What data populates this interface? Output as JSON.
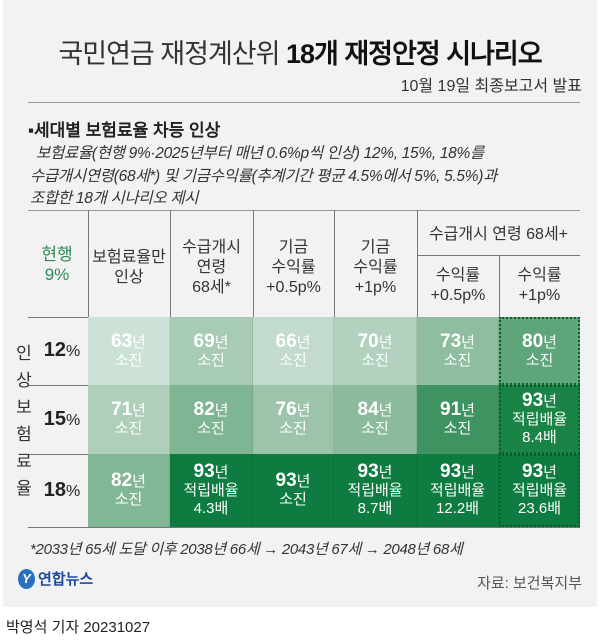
{
  "title_light": "국민연금 재정계산위 ",
  "title_bold": "18개 재정안정 시나리오",
  "subtitle": "10월 19일 최종보고서 발표",
  "bullet": "▪세대별 보험료율 차등 인상",
  "desc": [
    "보험료율(현행 9%·2025년부터 매년 0.6%p씩 인상) 12%, 15%, 18%를",
    "수급개시연령(68세*) 및 기금수익률(추계기간 평균 4.5%에서 5%, 5.5%)과",
    "조합한 18개 시나리오 제시"
  ],
  "current": "현행\n9%",
  "vertical_label": "인상 보험료율",
  "group_header": "수급개시 연령 68세+",
  "chart_data": {
    "type": "table",
    "title": "국민연금 재정계산위 18개 재정안정 시나리오",
    "columns": [
      "보험료율만\n인상",
      "수급개시\n연령\n68세*",
      "기금\n수익률\n+0.5p%",
      "기금\n수익률\n+1p%",
      "수익률\n+0.5p%",
      "수익률\n+1p%"
    ],
    "rows": [
      {
        "label": "12",
        "unit": "%",
        "cells": [
          {
            "year": "63",
            "yu": "년",
            "l1": "소진",
            "color": "#cde2d6"
          },
          {
            "year": "69",
            "yu": "년",
            "l1": "소진",
            "color": "#a8cbb6"
          },
          {
            "year": "66",
            "yu": "년",
            "l1": "소진",
            "color": "#c2dbcc"
          },
          {
            "year": "70",
            "yu": "년",
            "l1": "소진",
            "color": "#b2d2bf"
          },
          {
            "year": "73",
            "yu": "년",
            "l1": "소진",
            "color": "#8ebe9f"
          },
          {
            "year": "80",
            "yu": "년",
            "l1": "소진",
            "color": "#5ea579"
          }
        ]
      },
      {
        "label": "15",
        "unit": "%",
        "cells": [
          {
            "year": "71",
            "yu": "년",
            "l1": "소진",
            "color": "#afcfbb"
          },
          {
            "year": "82",
            "yu": "년",
            "l1": "소진",
            "color": "#7fb592"
          },
          {
            "year": "76",
            "yu": "년",
            "l1": "소진",
            "color": "#9dc4ab"
          },
          {
            "year": "84",
            "yu": "년",
            "l1": "소진",
            "color": "#8bbb9c"
          },
          {
            "year": "91",
            "yu": "년",
            "l1": "소진",
            "color": "#3e9361"
          },
          {
            "year": "93",
            "yu": "년",
            "l1": "적립배율",
            "l2": "8.4배",
            "color": "#1a8346"
          }
        ]
      },
      {
        "label": "18",
        "unit": "%",
        "cells": [
          {
            "year": "82",
            "yu": "년",
            "l1": "소진",
            "color": "#82b796"
          },
          {
            "year": "93",
            "yu": "년",
            "l1": "적립배율",
            "l2": "4.3배",
            "color": "#0e7c40"
          },
          {
            "year": "93",
            "yu": "년",
            "l1": "소진",
            "color": "#0e7c40"
          },
          {
            "year": "93",
            "yu": "년",
            "l1": "적립배율",
            "l2": "8.7배",
            "color": "#0e7c40"
          },
          {
            "year": "93",
            "yu": "년",
            "l1": "적립배율",
            "l2": "12.2배",
            "color": "#0e7c40"
          },
          {
            "year": "93",
            "yu": "년",
            "l1": "적립배율",
            "l2": "23.6배",
            "color": "#0e7c40"
          }
        ]
      }
    ]
  },
  "note": "*2033년 65세 도달 이후 2038년 66세 → 2043년 67세 → 2048년 68세",
  "logo": "연합뉴스",
  "source": "자료: 보건복지부",
  "byline": "박영석 기자  20231027",
  "accent": "#2e8b57"
}
